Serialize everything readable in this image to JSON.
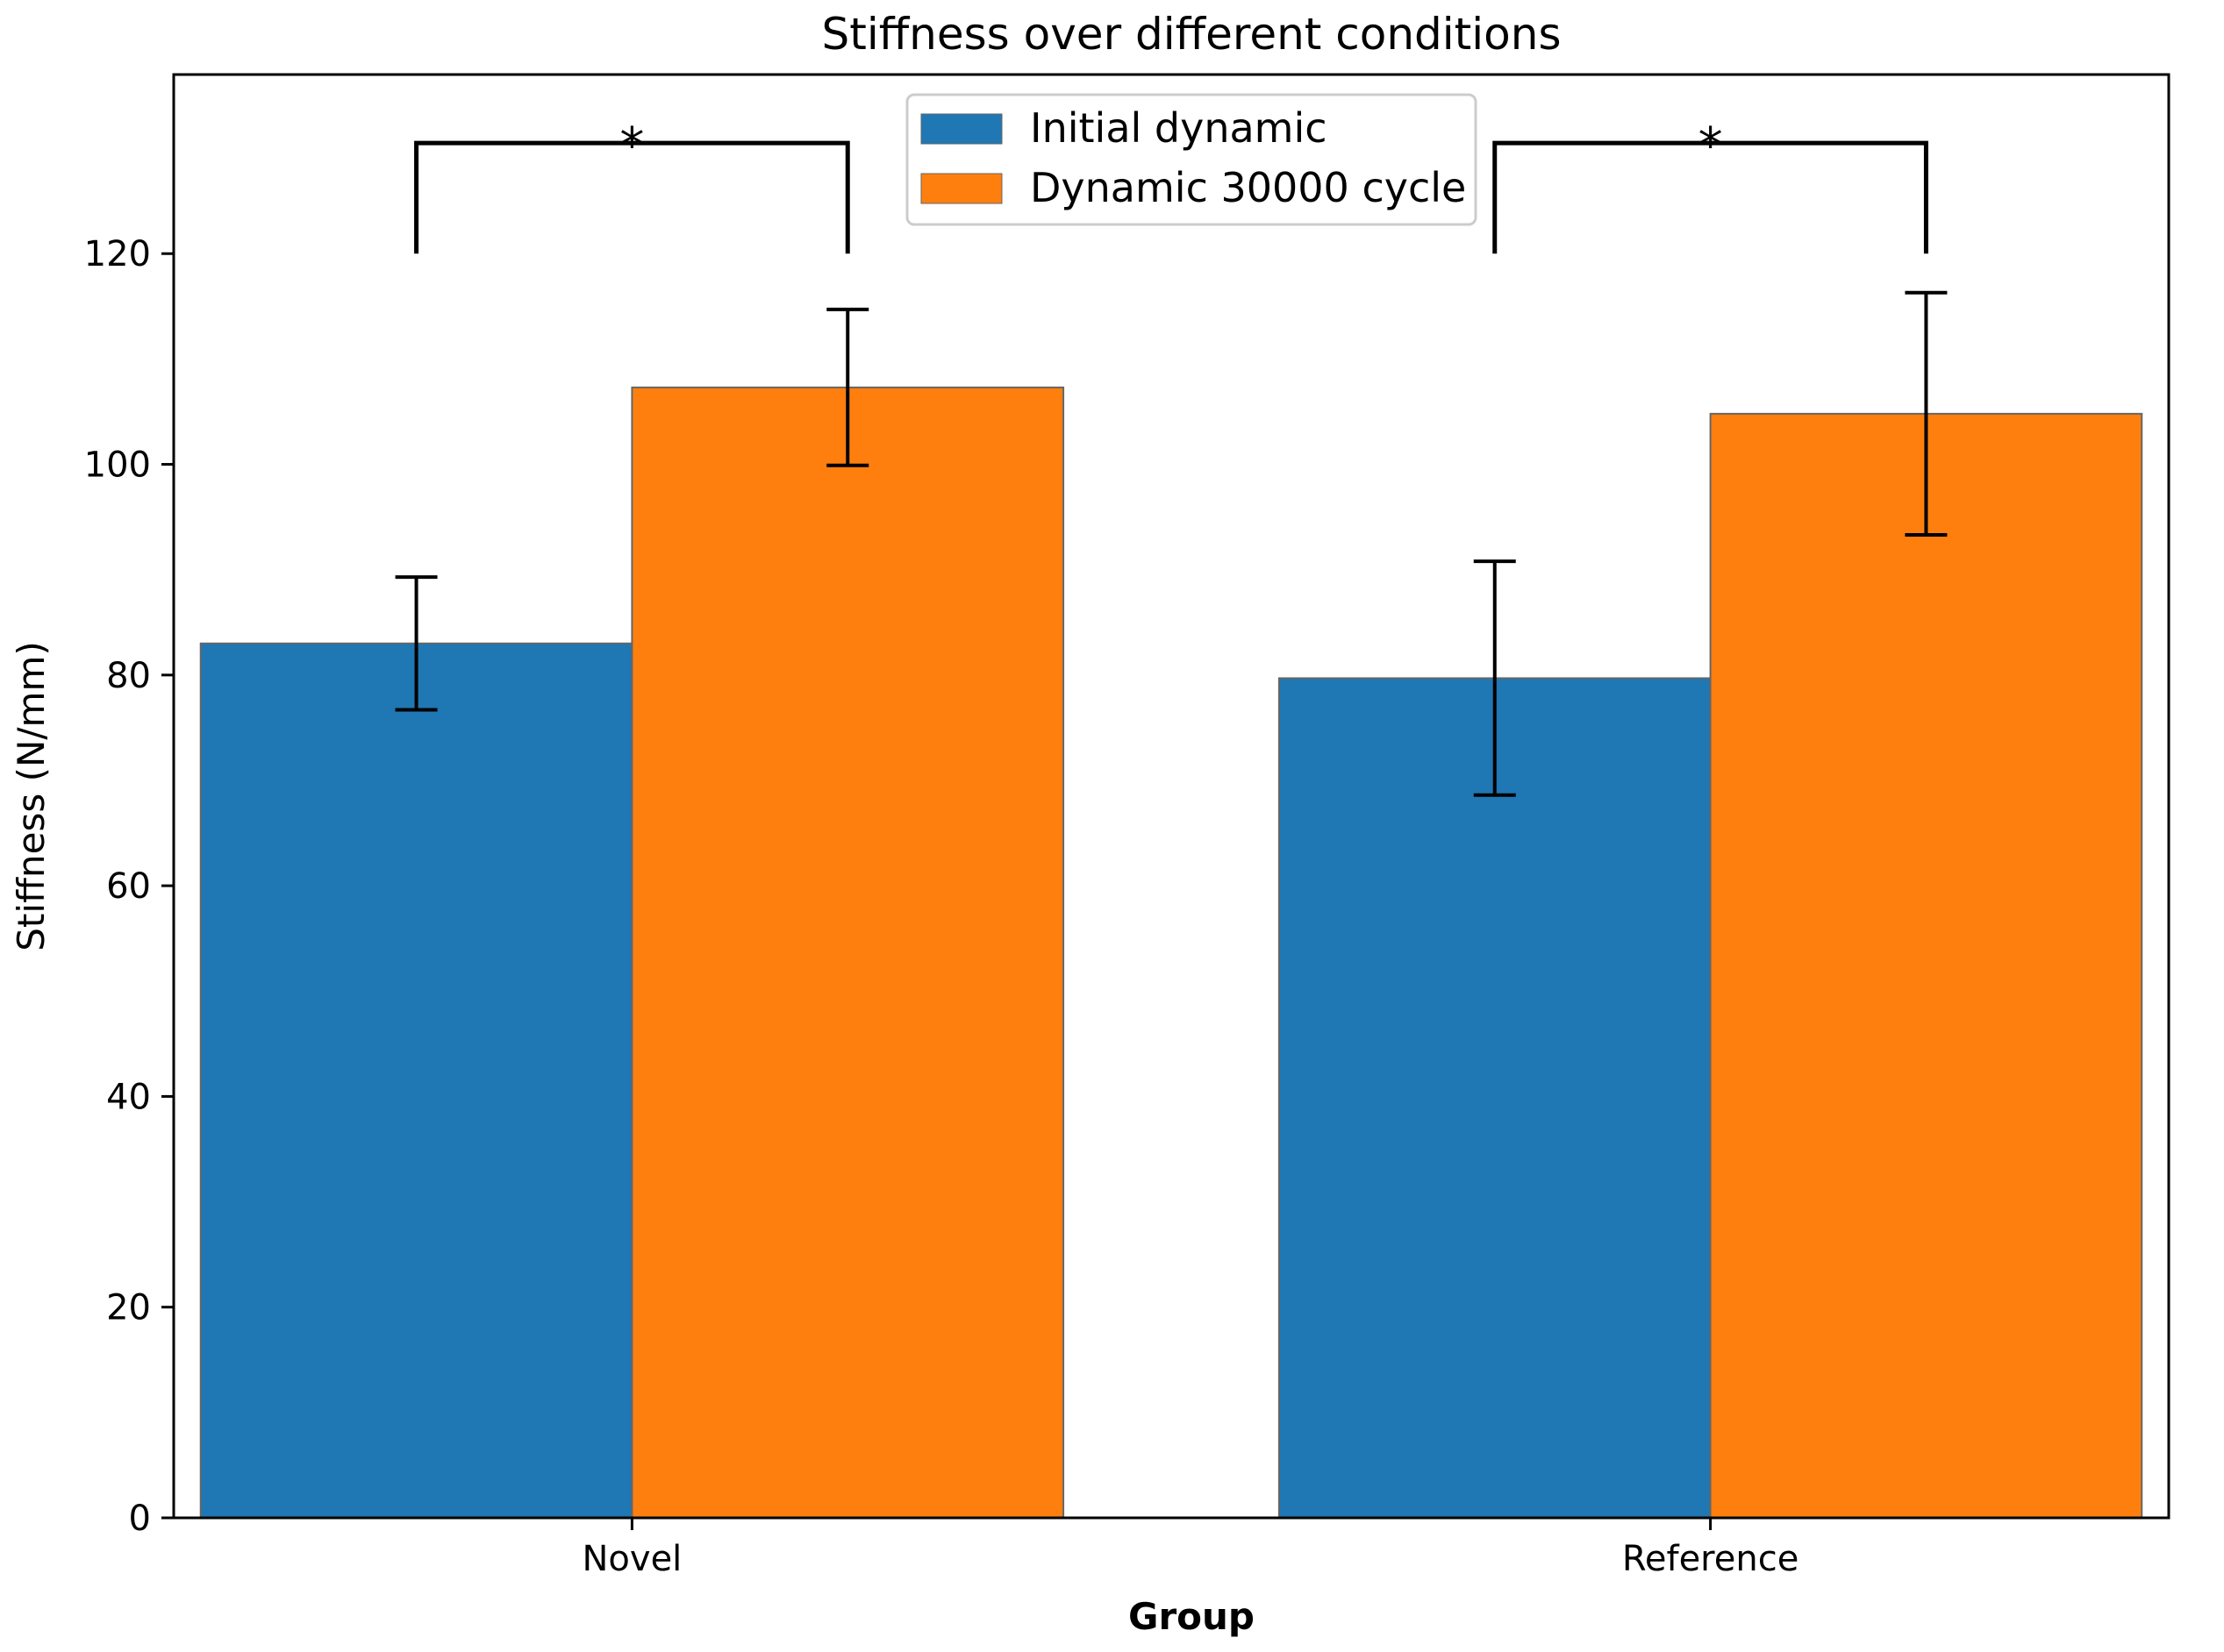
{
  "chart_data": {
    "type": "bar",
    "title": "Stiffness over different conditions",
    "xlabel": "Group",
    "ylabel": "Stiffness (N/mm)",
    "categories": [
      "Novel",
      "Reference"
    ],
    "ylim": [
      0,
      137
    ],
    "yticks": [
      0,
      20,
      40,
      60,
      80,
      100,
      120
    ],
    "grid": false,
    "legend_position": "top-center",
    "series": [
      {
        "name": "Initial dynamic",
        "color": "#1f77b4",
        "values": [
          83.0,
          79.7
        ],
        "errors": [
          6.3,
          11.1
        ]
      },
      {
        "name": "Dynamic 30000 cycle",
        "color": "#ff7f0e",
        "values": [
          107.3,
          104.8
        ],
        "errors": [
          7.4,
          11.5
        ]
      }
    ],
    "significance": [
      {
        "category": "Novel",
        "label": "*",
        "bracket_bottom": 120,
        "bracket_top": 130.5
      },
      {
        "category": "Reference",
        "label": "*",
        "bracket_bottom": 120,
        "bracket_top": 130.5
      }
    ]
  }
}
